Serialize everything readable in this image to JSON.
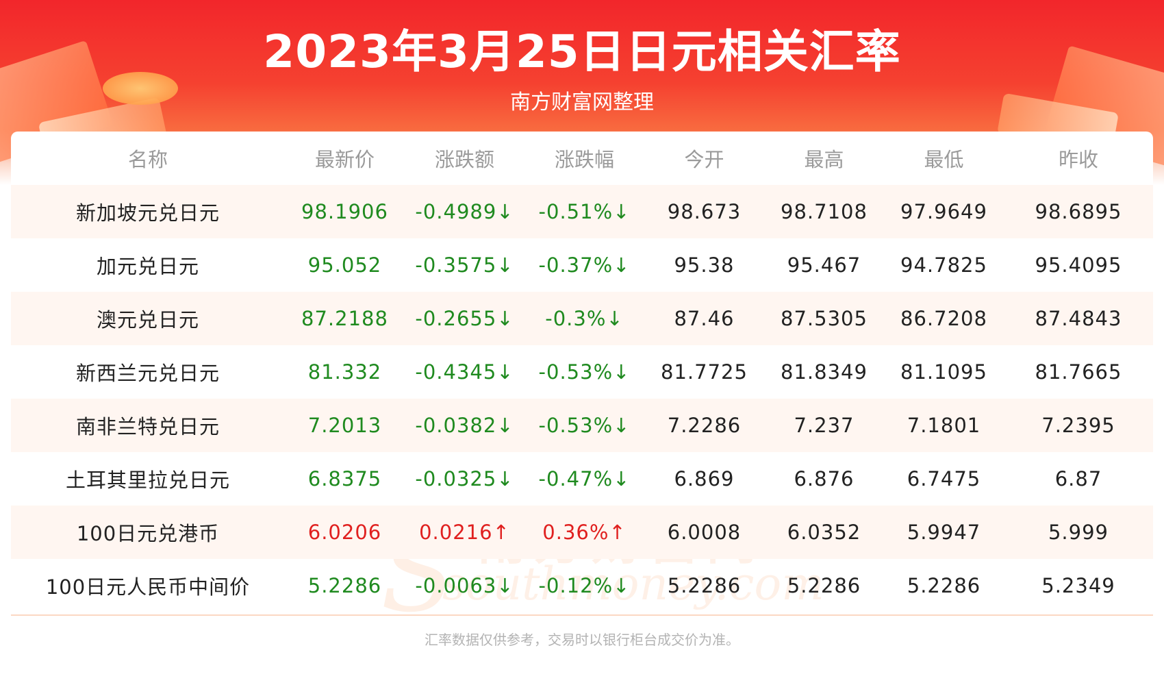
{
  "header": {
    "title": "2023年3月25日日元相关汇率",
    "subtitle": "南方财富网整理"
  },
  "watermark": {
    "line1": "南方财富网",
    "line2": "southmoney.com"
  },
  "table": {
    "columns": [
      "名称",
      "最新价",
      "涨跌额",
      "涨跌幅",
      "今开",
      "最高",
      "最低",
      "昨收"
    ],
    "rows": [
      {
        "name": "新加坡元兑日元",
        "latest": "98.1906",
        "change": "-0.4989↓",
        "pct": "-0.51%↓",
        "open": "98.673",
        "high": "98.7108",
        "low": "97.9649",
        "prev": "98.6895",
        "trend": "down"
      },
      {
        "name": "加元兑日元",
        "latest": "95.052",
        "change": "-0.3575↓",
        "pct": "-0.37%↓",
        "open": "95.38",
        "high": "95.467",
        "low": "94.7825",
        "prev": "95.4095",
        "trend": "down"
      },
      {
        "name": "澳元兑日元",
        "latest": "87.2188",
        "change": "-0.2655↓",
        "pct": "-0.3%↓",
        "open": "87.46",
        "high": "87.5305",
        "low": "86.7208",
        "prev": "87.4843",
        "trend": "down"
      },
      {
        "name": "新西兰元兑日元",
        "latest": "81.332",
        "change": "-0.4345↓",
        "pct": "-0.53%↓",
        "open": "81.7725",
        "high": "81.8349",
        "low": "81.1095",
        "prev": "81.7665",
        "trend": "down"
      },
      {
        "name": "南非兰特兑日元",
        "latest": "7.2013",
        "change": "-0.0382↓",
        "pct": "-0.53%↓",
        "open": "7.2286",
        "high": "7.237",
        "low": "7.1801",
        "prev": "7.2395",
        "trend": "down"
      },
      {
        "name": "土耳其里拉兑日元",
        "latest": "6.8375",
        "change": "-0.0325↓",
        "pct": "-0.47%↓",
        "open": "6.869",
        "high": "6.876",
        "low": "6.7475",
        "prev": "6.87",
        "trend": "down"
      },
      {
        "name": "100日元兑港币",
        "latest": "6.0206",
        "change": "0.0216↑",
        "pct": "0.36%↑",
        "open": "6.0008",
        "high": "6.0352",
        "low": "5.9947",
        "prev": "5.999",
        "trend": "up"
      },
      {
        "name": "100日元人民币中间价",
        "latest": "5.2286",
        "change": "-0.0063↓",
        "pct": "-0.12%↓",
        "open": "5.2286",
        "high": "5.2286",
        "low": "5.2286",
        "prev": "5.2349",
        "trend": "down"
      }
    ]
  },
  "footer": {
    "note": "汇率数据仅供参考，交易时以银行柜台成交价为准。"
  },
  "colors": {
    "header_red": "#f2262b",
    "down_green": "#1f8a1f",
    "up_red": "#e0201f",
    "row_alt": "#fff6f1"
  }
}
